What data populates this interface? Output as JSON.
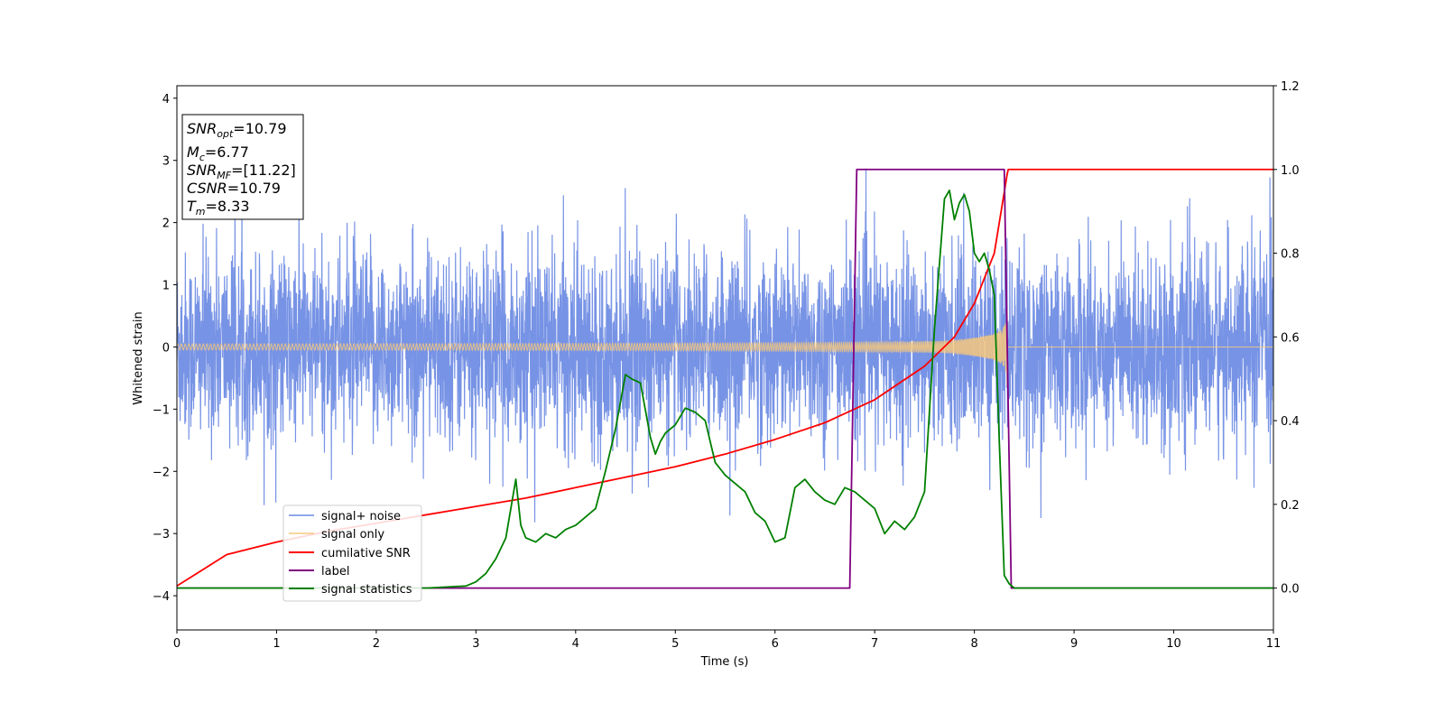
{
  "chart_data": {
    "type": "line",
    "title": "",
    "xlabel": "Time (s)",
    "ylabel": "Whitened strain",
    "xlim": [
      0,
      11
    ],
    "ylim": [
      -4.55,
      4.2
    ],
    "y2lim": [
      -0.1,
      1.2
    ],
    "x_ticks": [
      0,
      1,
      2,
      3,
      4,
      5,
      6,
      7,
      8,
      9,
      10,
      11
    ],
    "y_ticks": [
      -4,
      -3,
      -2,
      -1,
      0,
      1,
      2,
      3,
      4
    ],
    "y2_ticks": [
      0.0,
      0.2,
      0.4,
      0.6,
      0.8,
      1.0,
      1.2
    ],
    "x_tick_labels": [
      "0",
      "1",
      "2",
      "3",
      "4",
      "5",
      "6",
      "7",
      "8",
      "9",
      "10",
      "11"
    ],
    "y_tick_labels": [
      "−4",
      "−3",
      "−2",
      "−1",
      "0",
      "1",
      "2",
      "3",
      "4"
    ],
    "y2_tick_labels": [
      "0.0",
      "0.2",
      "0.4",
      "0.6",
      "0.8",
      "1.0",
      "1.2"
    ],
    "grid": false,
    "legend_position": "lower-left",
    "annotation": {
      "snr_opt": "10.79",
      "mc": "6.77",
      "snr_mf": "[11.22]",
      "csnr": "10.79",
      "tm": "8.33"
    },
    "series": [
      {
        "name": "signal+ noise",
        "color": "#6b8ae3",
        "axis": "left",
        "kind": "noise band",
        "approx_std": 0.75,
        "x_range": [
          0,
          11
        ]
      },
      {
        "name": "signal only",
        "color": "#f5c77e",
        "axis": "left",
        "kind": "chirp",
        "amplitude_start": 0.05,
        "amplitude_at_merger": 0.9,
        "merger_time": 8.33
      },
      {
        "name": "cumilative SNR",
        "color": "#ff0000",
        "axis": "right",
        "x": [
          0,
          0.5,
          1,
          1.5,
          2,
          2.5,
          3,
          3.5,
          4,
          4.5,
          5,
          5.5,
          6,
          6.5,
          7,
          7.5,
          7.8,
          8.0,
          8.2,
          8.33,
          8.34,
          11
        ],
        "y": [
          0.005,
          0.08,
          0.11,
          0.135,
          0.155,
          0.175,
          0.195,
          0.215,
          0.24,
          0.265,
          0.29,
          0.32,
          0.355,
          0.395,
          0.45,
          0.53,
          0.6,
          0.68,
          0.8,
          0.99,
          1.0,
          1.0
        ]
      },
      {
        "name": "label",
        "color": "#800080",
        "axis": "right",
        "x": [
          0,
          6.75,
          6.82,
          8.3,
          8.37,
          11
        ],
        "y": [
          0,
          0,
          1,
          1,
          0,
          0
        ]
      },
      {
        "name": "signal statistics",
        "color": "#008000",
        "axis": "right",
        "x": [
          0,
          2.5,
          2.9,
          3.0,
          3.1,
          3.2,
          3.3,
          3.4,
          3.45,
          3.5,
          3.6,
          3.7,
          3.8,
          3.9,
          4.0,
          4.1,
          4.2,
          4.3,
          4.4,
          4.5,
          4.56,
          4.65,
          4.75,
          4.8,
          4.85,
          4.9,
          5.0,
          5.1,
          5.2,
          5.3,
          5.4,
          5.5,
          5.6,
          5.7,
          5.8,
          5.9,
          6.0,
          6.1,
          6.2,
          6.3,
          6.4,
          6.5,
          6.6,
          6.7,
          6.8,
          6.9,
          7.0,
          7.1,
          7.2,
          7.3,
          7.4,
          7.5,
          7.6,
          7.7,
          7.75,
          7.8,
          7.85,
          7.9,
          7.95,
          8.0,
          8.05,
          8.1,
          8.15,
          8.2,
          8.25,
          8.3,
          8.35,
          8.4,
          8.5,
          11
        ],
        "y": [
          0.0,
          0.0,
          0.005,
          0.015,
          0.035,
          0.07,
          0.12,
          0.26,
          0.15,
          0.12,
          0.11,
          0.13,
          0.12,
          0.14,
          0.15,
          0.17,
          0.19,
          0.28,
          0.38,
          0.51,
          0.5,
          0.49,
          0.36,
          0.32,
          0.35,
          0.37,
          0.39,
          0.43,
          0.42,
          0.4,
          0.3,
          0.27,
          0.25,
          0.23,
          0.18,
          0.16,
          0.11,
          0.12,
          0.24,
          0.26,
          0.23,
          0.21,
          0.2,
          0.24,
          0.23,
          0.21,
          0.19,
          0.13,
          0.16,
          0.14,
          0.17,
          0.23,
          0.62,
          0.93,
          0.95,
          0.88,
          0.92,
          0.94,
          0.9,
          0.8,
          0.78,
          0.8,
          0.76,
          0.7,
          0.35,
          0.03,
          0.01,
          0.0,
          0.0,
          0.0
        ]
      }
    ]
  }
}
